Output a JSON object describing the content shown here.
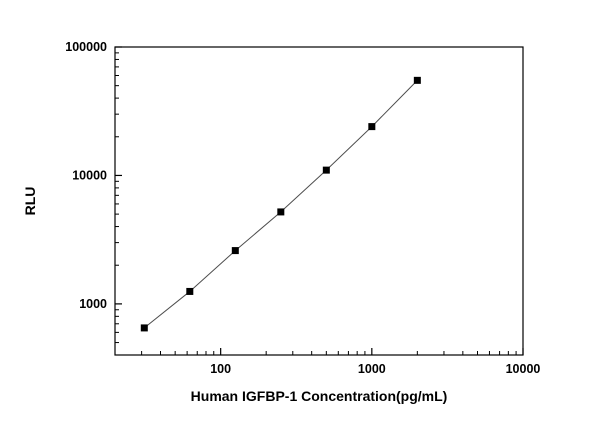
{
  "figure": {
    "background": "#ffffff",
    "frame_color": "#000000"
  },
  "chart_data": {
    "type": "line",
    "title": "",
    "xlabel": "Human IGFBP-1 Concentration(pg/mL)",
    "ylabel": "RLU",
    "x_scale": "log",
    "y_scale": "log",
    "x": [
      31.25,
      62.5,
      125,
      250,
      500,
      1000,
      2000
    ],
    "y": [
      650,
      1250,
      2600,
      5200,
      11000,
      24000,
      55000
    ],
    "xlim": [
      20,
      10000
    ],
    "ylim": [
      400,
      100000
    ],
    "x_ticks": [
      100,
      1000,
      10000
    ],
    "x_tick_labels": [
      "100",
      "1000",
      "10000"
    ],
    "y_ticks": [
      1000,
      10000,
      100000
    ],
    "y_tick_labels": [
      "1000",
      "10000",
      "100000"
    ],
    "marker": "filled-square",
    "marker_size": 7,
    "marker_color": "#000000",
    "line_color": "#4d4d4d",
    "line_width": 1,
    "grid": false,
    "legend": null,
    "frame": true
  }
}
